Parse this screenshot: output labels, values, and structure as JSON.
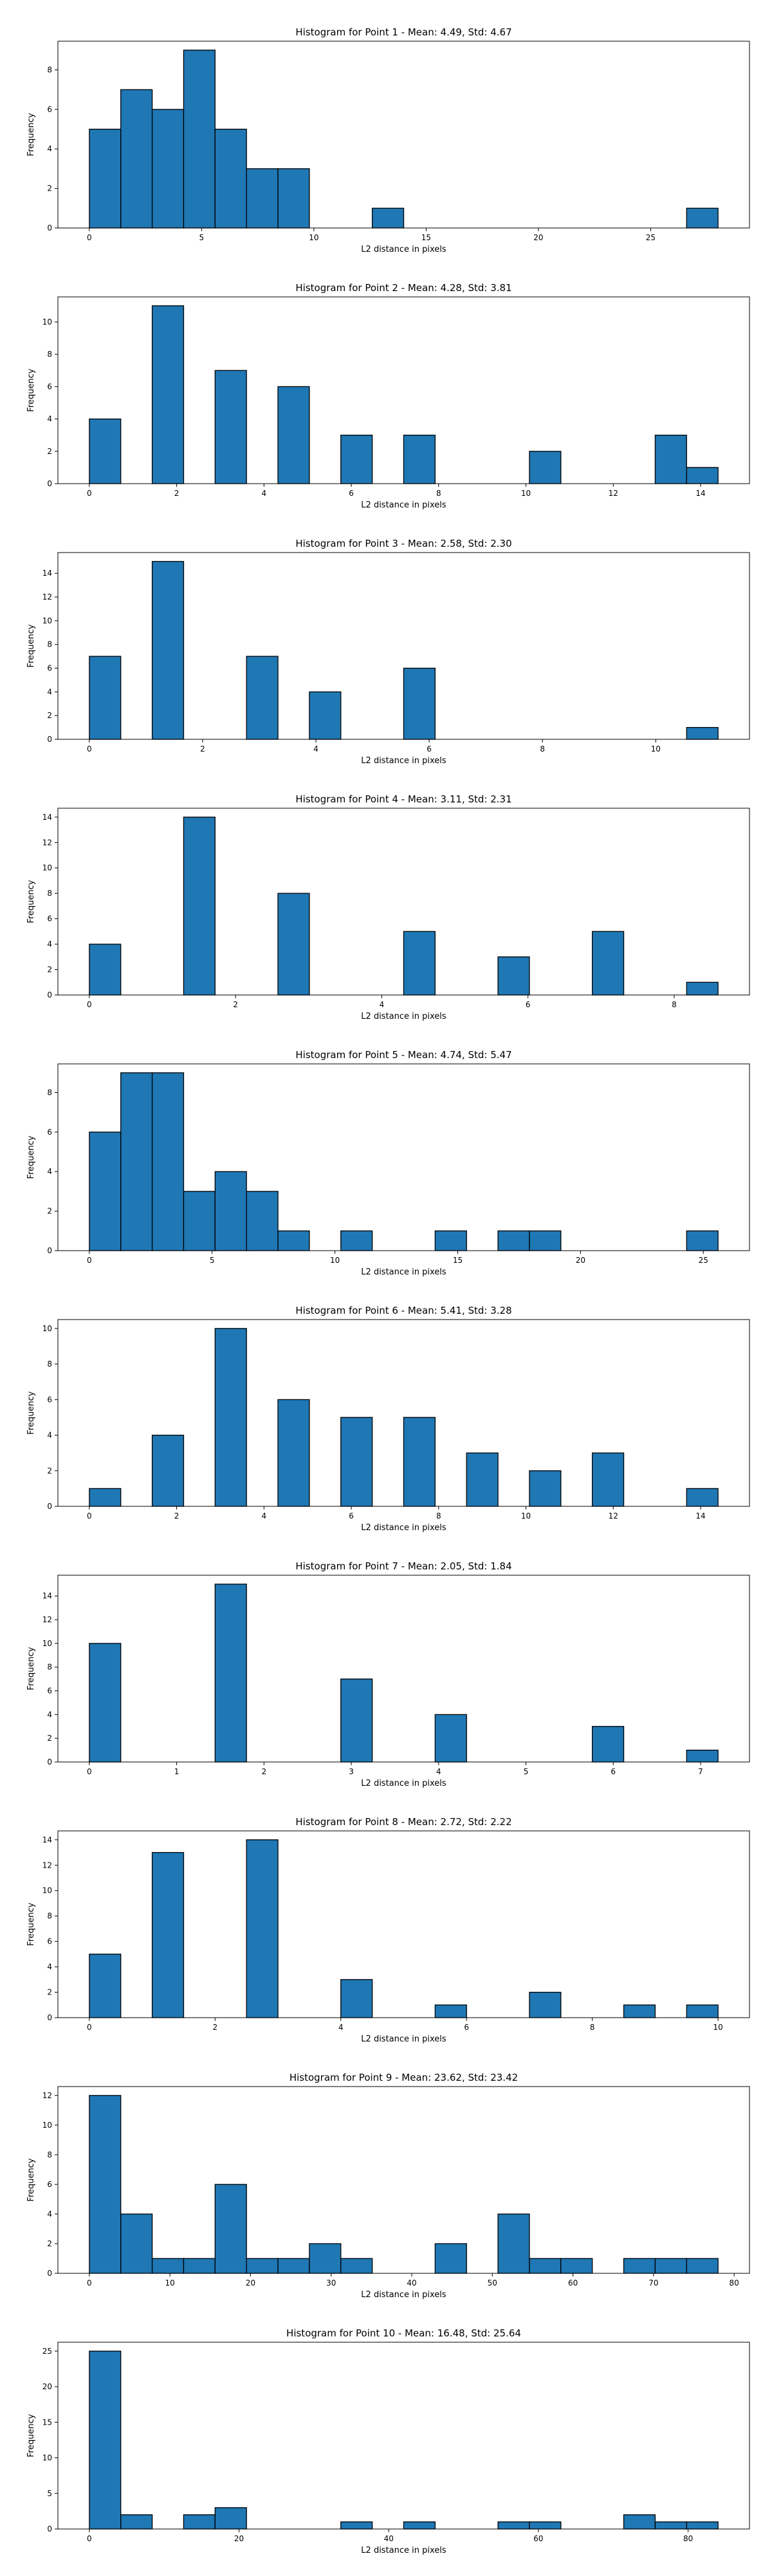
{
  "figure": {
    "bar_color": "#1f77b4",
    "edge_color": "#000000",
    "background": "#ffffff"
  },
  "chart_data": [
    {
      "type": "bar",
      "title": "Histogram for Point 1 - Mean: 4.49, Std: 4.67",
      "xlabel": "L2 distance in pixels",
      "ylabel": "Frequency",
      "bin_range": [
        0,
        28
      ],
      "bin_count": 20,
      "values": [
        5,
        7,
        6,
        9,
        5,
        3,
        3,
        0,
        0,
        1,
        0,
        0,
        0,
        0,
        0,
        0,
        0,
        0,
        0,
        1
      ],
      "xlim": [
        -1.4,
        29.4
      ],
      "ylim": [
        0,
        9.45
      ],
      "xticks": [
        0,
        5,
        10,
        15,
        20,
        25
      ],
      "xtick_labels": [
        "0",
        "5",
        "10",
        "15",
        "20",
        "25"
      ],
      "yticks": [
        0,
        2,
        4,
        6,
        8
      ],
      "ytick_labels": [
        "0",
        "2",
        "4",
        "6",
        "8"
      ]
    },
    {
      "type": "bar",
      "title": "Histogram for Point 2 - Mean: 4.28, Std: 3.81",
      "xlabel": "L2 distance in pixels",
      "ylabel": "Frequency",
      "bin_range": [
        0,
        14.4
      ],
      "bin_count": 20,
      "values": [
        4,
        0,
        11,
        0,
        7,
        0,
        6,
        0,
        3,
        0,
        3,
        0,
        0,
        0,
        2,
        0,
        0,
        0,
        3,
        1
      ],
      "xlim": [
        -0.72,
        15.12
      ],
      "ylim": [
        0,
        11.55
      ],
      "xticks": [
        0,
        2,
        4,
        6,
        8,
        10,
        12,
        14
      ],
      "xtick_labels": [
        "0",
        "2",
        "4",
        "6",
        "8",
        "10",
        "12",
        "14"
      ],
      "yticks": [
        0,
        2,
        4,
        6,
        8,
        10
      ],
      "ytick_labels": [
        "0",
        "2",
        "4",
        "6",
        "8",
        "10"
      ]
    },
    {
      "type": "bar",
      "title": "Histogram for Point 3 - Mean: 2.58, Std: 2.30",
      "xlabel": "L2 distance in pixels",
      "ylabel": "Frequency",
      "bin_range": [
        0,
        11.1
      ],
      "bin_count": 20,
      "values": [
        7,
        0,
        15,
        0,
        0,
        7,
        0,
        4,
        0,
        0,
        6,
        0,
        0,
        0,
        0,
        0,
        0,
        0,
        0,
        1
      ],
      "xlim": [
        -0.555,
        11.655
      ],
      "ylim": [
        0,
        15.75
      ],
      "xticks": [
        0,
        2,
        4,
        6,
        8,
        10
      ],
      "xtick_labels": [
        "0",
        "2",
        "4",
        "6",
        "8",
        "10"
      ],
      "yticks": [
        0,
        2,
        4,
        6,
        8,
        10,
        12,
        14
      ],
      "ytick_labels": [
        "0",
        "2",
        "4",
        "6",
        "8",
        "10",
        "12",
        "14"
      ]
    },
    {
      "type": "bar",
      "title": "Histogram for Point 4 - Mean: 3.11, Std: 2.31",
      "xlabel": "L2 distance in pixels",
      "ylabel": "Frequency",
      "bin_range": [
        0,
        8.6
      ],
      "bin_count": 20,
      "values": [
        4,
        0,
        0,
        14,
        0,
        0,
        8,
        0,
        0,
        0,
        5,
        0,
        0,
        3,
        0,
        0,
        5,
        0,
        0,
        1
      ],
      "xlim": [
        -0.43,
        9.03
      ],
      "ylim": [
        0,
        14.7
      ],
      "xticks": [
        0,
        2,
        4,
        6,
        8
      ],
      "xtick_labels": [
        "0",
        "2",
        "4",
        "6",
        "8"
      ],
      "yticks": [
        0,
        2,
        4,
        6,
        8,
        10,
        12,
        14
      ],
      "ytick_labels": [
        "0",
        "2",
        "4",
        "6",
        "8",
        "10",
        "12",
        "14"
      ]
    },
    {
      "type": "bar",
      "title": "Histogram for Point 5 - Mean: 4.74, Std: 5.47",
      "xlabel": "L2 distance in pixels",
      "ylabel": "Frequency",
      "bin_range": [
        0,
        25.6
      ],
      "bin_count": 20,
      "values": [
        6,
        9,
        9,
        3,
        4,
        3,
        1,
        0,
        1,
        0,
        0,
        1,
        0,
        1,
        1,
        0,
        0,
        0,
        0,
        1
      ],
      "xlim": [
        -1.28,
        26.88
      ],
      "ylim": [
        0,
        9.45
      ],
      "xticks": [
        0,
        5,
        10,
        15,
        20,
        25
      ],
      "xtick_labels": [
        "0",
        "5",
        "10",
        "15",
        "20",
        "25"
      ],
      "yticks": [
        0,
        2,
        4,
        6,
        8
      ],
      "ytick_labels": [
        "0",
        "2",
        "4",
        "6",
        "8"
      ]
    },
    {
      "type": "bar",
      "title": "Histogram for Point 6 - Mean: 5.41, Std: 3.28",
      "xlabel": "L2 distance in pixels",
      "ylabel": "Frequency",
      "bin_range": [
        0,
        14.4
      ],
      "bin_count": 20,
      "values": [
        1,
        0,
        4,
        0,
        10,
        0,
        6,
        0,
        5,
        0,
        5,
        0,
        3,
        0,
        2,
        0,
        3,
        0,
        0,
        1
      ],
      "xlim": [
        -0.72,
        15.12
      ],
      "ylim": [
        0,
        10.5
      ],
      "xticks": [
        0,
        2,
        4,
        6,
        8,
        10,
        12,
        14
      ],
      "xtick_labels": [
        "0",
        "2",
        "4",
        "6",
        "8",
        "10",
        "12",
        "14"
      ],
      "yticks": [
        0,
        2,
        4,
        6,
        8,
        10
      ],
      "ytick_labels": [
        "0",
        "2",
        "4",
        "6",
        "8",
        "10"
      ]
    },
    {
      "type": "bar",
      "title": "Histogram for Point 7 - Mean: 2.05, Std: 1.84",
      "xlabel": "L2 distance in pixels",
      "ylabel": "Frequency",
      "bin_range": [
        0,
        7.2
      ],
      "bin_count": 20,
      "values": [
        10,
        0,
        0,
        0,
        15,
        0,
        0,
        0,
        7,
        0,
        0,
        4,
        0,
        0,
        0,
        0,
        3,
        0,
        0,
        1
      ],
      "xlim": [
        -0.36,
        7.56
      ],
      "ylim": [
        0,
        15.75
      ],
      "xticks": [
        0,
        1,
        2,
        3,
        4,
        5,
        6,
        7
      ],
      "xtick_labels": [
        "0",
        "1",
        "2",
        "3",
        "4",
        "5",
        "6",
        "7"
      ],
      "yticks": [
        0,
        2,
        4,
        6,
        8,
        10,
        12,
        14
      ],
      "ytick_labels": [
        "0",
        "2",
        "4",
        "6",
        "8",
        "10",
        "12",
        "14"
      ]
    },
    {
      "type": "bar",
      "title": "Histogram for Point 8 - Mean: 2.72, Std: 2.22",
      "xlabel": "L2 distance in pixels",
      "ylabel": "Frequency",
      "bin_range": [
        0,
        10
      ],
      "bin_count": 20,
      "values": [
        5,
        0,
        13,
        0,
        0,
        14,
        0,
        0,
        3,
        0,
        0,
        1,
        0,
        0,
        2,
        0,
        0,
        1,
        0,
        1
      ],
      "xlim": [
        -0.5,
        10.5
      ],
      "ylim": [
        0,
        14.7
      ],
      "xticks": [
        0,
        2,
        4,
        6,
        8,
        10
      ],
      "xtick_labels": [
        "0",
        "2",
        "4",
        "6",
        "8",
        "10"
      ],
      "yticks": [
        0,
        2,
        4,
        6,
        8,
        10,
        12,
        14
      ],
      "ytick_labels": [
        "0",
        "2",
        "4",
        "6",
        "8",
        "10",
        "12",
        "14"
      ]
    },
    {
      "type": "bar",
      "title": "Histogram for Point 9 - Mean: 23.62, Std: 23.42",
      "xlabel": "L2 distance in pixels",
      "ylabel": "Frequency",
      "bin_range": [
        0,
        78
      ],
      "bin_count": 20,
      "values": [
        12,
        4,
        1,
        1,
        6,
        1,
        1,
        2,
        1,
        0,
        0,
        2,
        0,
        4,
        1,
        1,
        0,
        1,
        1,
        1
      ],
      "xlim": [
        -3.9,
        81.9
      ],
      "ylim": [
        0,
        12.6
      ],
      "xticks": [
        0,
        10,
        20,
        30,
        40,
        50,
        60,
        70,
        80
      ],
      "xtick_labels": [
        "0",
        "10",
        "20",
        "30",
        "40",
        "50",
        "60",
        "70",
        "80"
      ],
      "yticks": [
        0,
        2,
        4,
        6,
        8,
        10,
        12
      ],
      "ytick_labels": [
        "0",
        "2",
        "4",
        "6",
        "8",
        "10",
        "12"
      ]
    },
    {
      "type": "bar",
      "title": "Histogram for Point 10 - Mean: 16.48, Std: 25.64",
      "xlabel": "L2 distance in pixels",
      "ylabel": "Frequency",
      "bin_range": [
        0,
        84
      ],
      "bin_count": 20,
      "values": [
        25,
        2,
        0,
        2,
        3,
        0,
        0,
        0,
        1,
        0,
        1,
        0,
        0,
        1,
        1,
        0,
        0,
        2,
        1,
        1
      ],
      "xlim": [
        -4.2,
        88.2
      ],
      "ylim": [
        0,
        26.25
      ],
      "xticks": [
        0,
        20,
        40,
        60,
        80
      ],
      "xtick_labels": [
        "0",
        "20",
        "40",
        "60",
        "80"
      ],
      "yticks": [
        0,
        5,
        10,
        15,
        20,
        25
      ],
      "ytick_labels": [
        "0",
        "5",
        "10",
        "15",
        "20",
        "25"
      ]
    }
  ]
}
